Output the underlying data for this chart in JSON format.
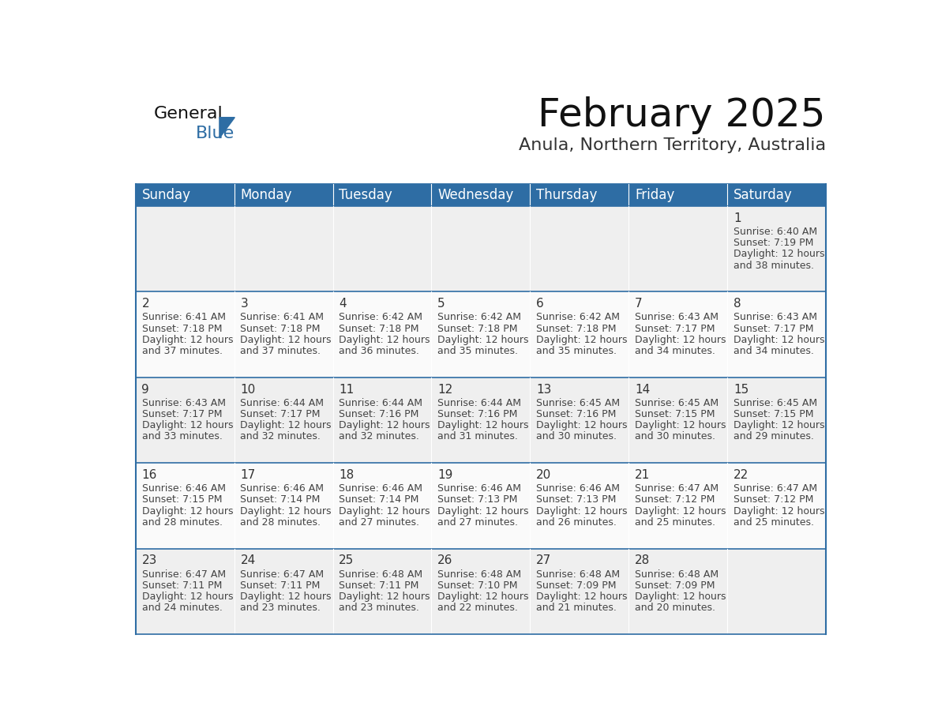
{
  "title": "February 2025",
  "subtitle": "Anula, Northern Territory, Australia",
  "header_bg": "#2E6DA4",
  "header_text_color": "#FFFFFF",
  "row_bg_odd": "#EFEFEF",
  "row_bg_even": "#FAFAFA",
  "border_color": "#2E6DA4",
  "day_number_color": "#333333",
  "cell_text_color": "#444444",
  "days_of_week": [
    "Sunday",
    "Monday",
    "Tuesday",
    "Wednesday",
    "Thursday",
    "Friday",
    "Saturday"
  ],
  "calendar": [
    [
      null,
      null,
      null,
      null,
      null,
      null,
      {
        "day": 1,
        "sunrise": "6:40 AM",
        "sunset": "7:19 PM",
        "daylight": "12 hours",
        "daylight2": "and 38 minutes."
      }
    ],
    [
      {
        "day": 2,
        "sunrise": "6:41 AM",
        "sunset": "7:18 PM",
        "daylight": "12 hours",
        "daylight2": "and 37 minutes."
      },
      {
        "day": 3,
        "sunrise": "6:41 AM",
        "sunset": "7:18 PM",
        "daylight": "12 hours",
        "daylight2": "and 37 minutes."
      },
      {
        "day": 4,
        "sunrise": "6:42 AM",
        "sunset": "7:18 PM",
        "daylight": "12 hours",
        "daylight2": "and 36 minutes."
      },
      {
        "day": 5,
        "sunrise": "6:42 AM",
        "sunset": "7:18 PM",
        "daylight": "12 hours",
        "daylight2": "and 35 minutes."
      },
      {
        "day": 6,
        "sunrise": "6:42 AM",
        "sunset": "7:18 PM",
        "daylight": "12 hours",
        "daylight2": "and 35 minutes."
      },
      {
        "day": 7,
        "sunrise": "6:43 AM",
        "sunset": "7:17 PM",
        "daylight": "12 hours",
        "daylight2": "and 34 minutes."
      },
      {
        "day": 8,
        "sunrise": "6:43 AM",
        "sunset": "7:17 PM",
        "daylight": "12 hours",
        "daylight2": "and 34 minutes."
      }
    ],
    [
      {
        "day": 9,
        "sunrise": "6:43 AM",
        "sunset": "7:17 PM",
        "daylight": "12 hours",
        "daylight2": "and 33 minutes."
      },
      {
        "day": 10,
        "sunrise": "6:44 AM",
        "sunset": "7:17 PM",
        "daylight": "12 hours",
        "daylight2": "and 32 minutes."
      },
      {
        "day": 11,
        "sunrise": "6:44 AM",
        "sunset": "7:16 PM",
        "daylight": "12 hours",
        "daylight2": "and 32 minutes."
      },
      {
        "day": 12,
        "sunrise": "6:44 AM",
        "sunset": "7:16 PM",
        "daylight": "12 hours",
        "daylight2": "and 31 minutes."
      },
      {
        "day": 13,
        "sunrise": "6:45 AM",
        "sunset": "7:16 PM",
        "daylight": "12 hours",
        "daylight2": "and 30 minutes."
      },
      {
        "day": 14,
        "sunrise": "6:45 AM",
        "sunset": "7:15 PM",
        "daylight": "12 hours",
        "daylight2": "and 30 minutes."
      },
      {
        "day": 15,
        "sunrise": "6:45 AM",
        "sunset": "7:15 PM",
        "daylight": "12 hours",
        "daylight2": "and 29 minutes."
      }
    ],
    [
      {
        "day": 16,
        "sunrise": "6:46 AM",
        "sunset": "7:15 PM",
        "daylight": "12 hours",
        "daylight2": "and 28 minutes."
      },
      {
        "day": 17,
        "sunrise": "6:46 AM",
        "sunset": "7:14 PM",
        "daylight": "12 hours",
        "daylight2": "and 28 minutes."
      },
      {
        "day": 18,
        "sunrise": "6:46 AM",
        "sunset": "7:14 PM",
        "daylight": "12 hours",
        "daylight2": "and 27 minutes."
      },
      {
        "day": 19,
        "sunrise": "6:46 AM",
        "sunset": "7:13 PM",
        "daylight": "12 hours",
        "daylight2": "and 27 minutes."
      },
      {
        "day": 20,
        "sunrise": "6:46 AM",
        "sunset": "7:13 PM",
        "daylight": "12 hours",
        "daylight2": "and 26 minutes."
      },
      {
        "day": 21,
        "sunrise": "6:47 AM",
        "sunset": "7:12 PM",
        "daylight": "12 hours",
        "daylight2": "and 25 minutes."
      },
      {
        "day": 22,
        "sunrise": "6:47 AM",
        "sunset": "7:12 PM",
        "daylight": "12 hours",
        "daylight2": "and 25 minutes."
      }
    ],
    [
      {
        "day": 23,
        "sunrise": "6:47 AM",
        "sunset": "7:11 PM",
        "daylight": "12 hours",
        "daylight2": "and 24 minutes."
      },
      {
        "day": 24,
        "sunrise": "6:47 AM",
        "sunset": "7:11 PM",
        "daylight": "12 hours",
        "daylight2": "and 23 minutes."
      },
      {
        "day": 25,
        "sunrise": "6:48 AM",
        "sunset": "7:11 PM",
        "daylight": "12 hours",
        "daylight2": "and 23 minutes."
      },
      {
        "day": 26,
        "sunrise": "6:48 AM",
        "sunset": "7:10 PM",
        "daylight": "12 hours",
        "daylight2": "and 22 minutes."
      },
      {
        "day": 27,
        "sunrise": "6:48 AM",
        "sunset": "7:09 PM",
        "daylight": "12 hours",
        "daylight2": "and 21 minutes."
      },
      {
        "day": 28,
        "sunrise": "6:48 AM",
        "sunset": "7:09 PM",
        "daylight": "12 hours",
        "daylight2": "and 20 minutes."
      },
      null
    ]
  ],
  "logo_text1": "General",
  "logo_text2": "Blue",
  "logo_color1": "#111111",
  "logo_color2": "#2E6DA4",
  "logo_triangle_color": "#2E6DA4",
  "title_fontsize": 36,
  "subtitle_fontsize": 16,
  "header_fontsize": 12,
  "day_number_fontsize": 11,
  "cell_text_fontsize": 9
}
